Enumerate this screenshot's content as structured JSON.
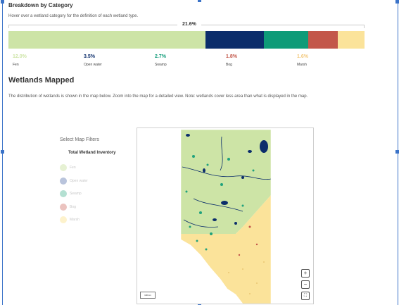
{
  "breakdown": {
    "title": "Breakdown by Category",
    "description": "Hover over a wetland category for the definition of each wetland type.",
    "total_label": "21.6%",
    "categories": [
      {
        "label": "Fen",
        "value": "12.0%",
        "color": "#cde4a6",
        "pct_color": "#cde4a6",
        "share": 12.0
      },
      {
        "label": "Open water",
        "value": "3.5%",
        "color": "#0b2d6b",
        "pct_color": "#0b2d6b",
        "share": 3.5
      },
      {
        "label": "Swamp",
        "value": "2.7%",
        "color": "#0e9b78",
        "pct_color": "#0e9b78",
        "share": 2.7
      },
      {
        "label": "Bog",
        "value": "1.8%",
        "color": "#c3574a",
        "pct_color": "#c3574a",
        "share": 1.8
      },
      {
        "label": "Marsh",
        "value": "1.6%",
        "color": "#fbe39a",
        "pct_color": "#f3c97d",
        "share": 1.6
      }
    ]
  },
  "mapped": {
    "title": "Wetlands Mapped",
    "description": "The distribution of wetlands is shown in the map below. Zoom into the map for a detailed view. Note: wetlands cover less area than what is displayed in the map."
  },
  "filters": {
    "title": "Select Map Filters",
    "subtitle": "Total Wetland Inventory",
    "items": [
      {
        "label": "Fen",
        "color": "#e6f1d3"
      },
      {
        "label": "Open water",
        "color": "#b9c4dc"
      },
      {
        "label": "Swamp",
        "color": "#b4e0d2"
      },
      {
        "label": "Bog",
        "color": "#ebc3bf"
      },
      {
        "label": "Marsh",
        "color": "#fdf2cc"
      }
    ]
  },
  "map": {
    "zoom_in": "+",
    "zoom_out": "−",
    "fullscreen": "⛶",
    "scale_label": "100 km"
  }
}
